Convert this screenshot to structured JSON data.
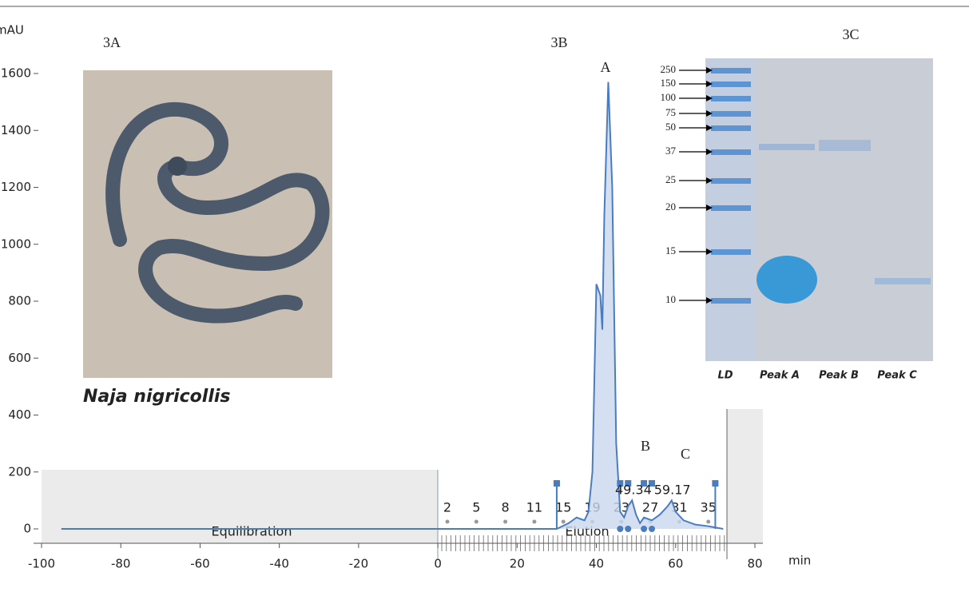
{
  "chart_data": {
    "type": "line",
    "y_label": "mAU",
    "x_label": "min",
    "panel_labels": [
      "3A",
      "3B",
      "3C"
    ],
    "peak_labels": [
      "A",
      "B",
      "C"
    ],
    "phase_labels": [
      "Equilibration",
      "Elution"
    ],
    "fraction_labels": [
      "2",
      "5",
      "8",
      "11",
      "15",
      "19",
      "23",
      "27",
      "31",
      "35"
    ],
    "peak_retention_times": [
      49.34,
      59.17
    ],
    "species": "Naja nigricollis",
    "xlim": [
      -100,
      80
    ],
    "xticks": [
      -100,
      -80,
      -60,
      -40,
      -20,
      0,
      20,
      40,
      60,
      80
    ],
    "ylim": [
      0,
      1600
    ],
    "yticks": [
      0,
      200,
      400,
      600,
      800,
      1000,
      1200,
      1400,
      1600
    ],
    "series": [
      {
        "color": "#4a7cc0",
        "x": [
          -95,
          0,
          30,
          33,
          35,
          37,
          38,
          39,
          40,
          41,
          41.5,
          42,
          43,
          44,
          45,
          46,
          47,
          48,
          49,
          50,
          51,
          52,
          54,
          56,
          58,
          59,
          60,
          62,
          65,
          68,
          70,
          72
        ],
        "values": [
          0,
          0,
          0,
          20,
          40,
          30,
          60,
          200,
          860,
          820,
          700,
          1100,
          1570,
          1200,
          300,
          60,
          40,
          80,
          100,
          50,
          20,
          40,
          30,
          50,
          80,
          100,
          60,
          30,
          15,
          10,
          5,
          0
        ]
      }
    ]
  },
  "gel": {
    "lanes": [
      "LD",
      "Peak A",
      "Peak B",
      "Peak C"
    ],
    "markers": [
      250,
      150,
      100,
      75,
      50,
      37,
      25,
      20,
      15,
      10
    ]
  }
}
